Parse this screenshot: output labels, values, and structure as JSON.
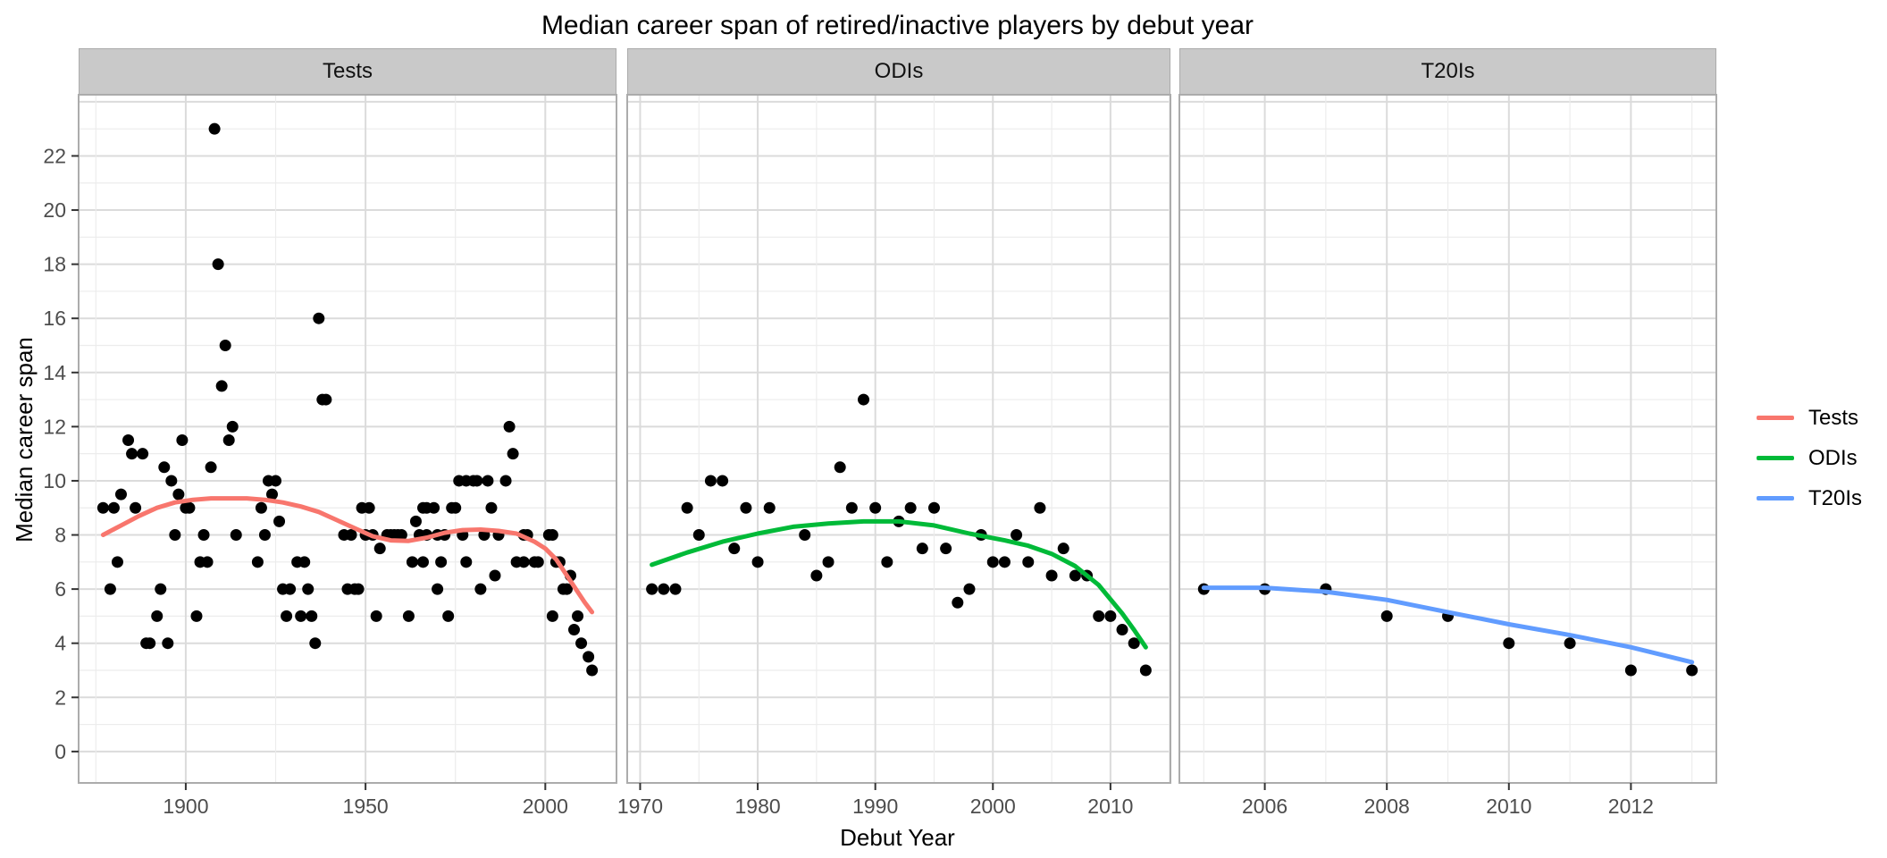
{
  "title": "Median career span of retired/inactive players by debut year",
  "axes": {
    "x_title": "Debut Year",
    "y_title": "Median career span",
    "y_tick_labels": [
      0,
      2,
      4,
      6,
      8,
      10,
      12,
      14,
      16,
      18,
      20,
      22
    ],
    "tick_label_color": "#4d4d4d"
  },
  "legend": {
    "items": [
      {
        "label": "Tests",
        "color": "#F8766D"
      },
      {
        "label": "ODIs",
        "color": "#00BA38"
      },
      {
        "label": "T20Is",
        "color": "#619CFF"
      }
    ]
  },
  "chart_data": [
    {
      "type": "scatter",
      "facet": "Tests",
      "smooth_color": "#F8766D",
      "point_color": "#000000",
      "x_domain": [
        1870.2,
        2019.8
      ],
      "y_domain": [
        -1.16,
        24.26
      ],
      "x_major_ticks": [
        1900,
        1950,
        2000
      ],
      "x_minor_ticks": [
        1875,
        1925,
        1975
      ],
      "points": [
        [
          1877,
          9
        ],
        [
          1879,
          6
        ],
        [
          1880,
          9
        ],
        [
          1881,
          7
        ],
        [
          1882,
          9.5
        ],
        [
          1884,
          11.5
        ],
        [
          1885,
          11
        ],
        [
          1886,
          9
        ],
        [
          1888,
          11
        ],
        [
          1889,
          4
        ],
        [
          1890,
          4
        ],
        [
          1892,
          5
        ],
        [
          1893,
          6
        ],
        [
          1894,
          10.5
        ],
        [
          1895,
          4
        ],
        [
          1896,
          10
        ],
        [
          1897,
          8
        ],
        [
          1898,
          9.5
        ],
        [
          1899,
          11.5
        ],
        [
          1900,
          9
        ],
        [
          1901,
          9
        ],
        [
          1903,
          5
        ],
        [
          1904,
          7
        ],
        [
          1905,
          8
        ],
        [
          1906,
          7
        ],
        [
          1907,
          10.5
        ],
        [
          1908,
          23
        ],
        [
          1909,
          18
        ],
        [
          1910,
          13.5
        ],
        [
          1911,
          15
        ],
        [
          1912,
          11.5
        ],
        [
          1913,
          12
        ],
        [
          1914,
          8
        ],
        [
          1920,
          7
        ],
        [
          1921,
          9
        ],
        [
          1922,
          8
        ],
        [
          1923,
          10
        ],
        [
          1924,
          9.5
        ],
        [
          1925,
          10
        ],
        [
          1926,
          8.5
        ],
        [
          1927,
          6
        ],
        [
          1928,
          5
        ],
        [
          1929,
          6
        ],
        [
          1931,
          7
        ],
        [
          1932,
          5
        ],
        [
          1933,
          7
        ],
        [
          1934,
          6
        ],
        [
          1935,
          5
        ],
        [
          1936,
          4
        ],
        [
          1937,
          16
        ],
        [
          1938,
          13
        ],
        [
          1939,
          13
        ],
        [
          1944,
          8
        ],
        [
          1945,
          6
        ],
        [
          1946,
          8
        ],
        [
          1947,
          6
        ],
        [
          1948,
          6
        ],
        [
          1949,
          9
        ],
        [
          1950,
          8
        ],
        [
          1951,
          9
        ],
        [
          1952,
          8
        ],
        [
          1953,
          5
        ],
        [
          1954,
          7.5
        ],
        [
          1956,
          8
        ],
        [
          1957,
          8
        ],
        [
          1958,
          8
        ],
        [
          1959,
          8
        ],
        [
          1960,
          8
        ],
        [
          1962,
          5
        ],
        [
          1963,
          7
        ],
        [
          1964,
          8.5
        ],
        [
          1965,
          8
        ],
        [
          1966,
          9
        ],
        [
          1966,
          7
        ],
        [
          1967,
          9
        ],
        [
          1967,
          8
        ],
        [
          1969,
          9
        ],
        [
          1970,
          8
        ],
        [
          1970,
          6
        ],
        [
          1971,
          7
        ],
        [
          1972,
          8
        ],
        [
          1973,
          5
        ],
        [
          1974,
          9
        ],
        [
          1975,
          9
        ],
        [
          1976,
          10
        ],
        [
          1977,
          8
        ],
        [
          1978,
          10
        ],
        [
          1978,
          7
        ],
        [
          1980,
          10
        ],
        [
          1981,
          10
        ],
        [
          1982,
          6
        ],
        [
          1983,
          8
        ],
        [
          1984,
          10
        ],
        [
          1985,
          9
        ],
        [
          1986,
          6.5
        ],
        [
          1987,
          8
        ],
        [
          1989,
          10
        ],
        [
          1990,
          12
        ],
        [
          1991,
          11
        ],
        [
          1992,
          7
        ],
        [
          1994,
          8
        ],
        [
          1994,
          7
        ],
        [
          1995,
          8
        ],
        [
          1997,
          7
        ],
        [
          1998,
          7
        ],
        [
          2001,
          8
        ],
        [
          2002,
          8
        ],
        [
          2002,
          5
        ],
        [
          2003,
          7
        ],
        [
          2004,
          7
        ],
        [
          2005,
          6
        ],
        [
          2006,
          6
        ],
        [
          2007,
          6.5
        ],
        [
          2008,
          4.5
        ],
        [
          2009,
          5
        ],
        [
          2010,
          4
        ],
        [
          2012,
          3.5
        ],
        [
          2013,
          3
        ]
      ],
      "smooth": [
        [
          1877,
          8.0
        ],
        [
          1882,
          8.35
        ],
        [
          1887,
          8.7
        ],
        [
          1892,
          9.0
        ],
        [
          1897,
          9.2
        ],
        [
          1902,
          9.3
        ],
        [
          1907,
          9.35
        ],
        [
          1912,
          9.35
        ],
        [
          1917,
          9.35
        ],
        [
          1922,
          9.3
        ],
        [
          1927,
          9.2
        ],
        [
          1932,
          9.05
        ],
        [
          1937,
          8.85
        ],
        [
          1942,
          8.55
        ],
        [
          1947,
          8.25
        ],
        [
          1952,
          7.95
        ],
        [
          1957,
          7.8
        ],
        [
          1962,
          7.78
        ],
        [
          1967,
          7.9
        ],
        [
          1972,
          8.08
        ],
        [
          1977,
          8.18
        ],
        [
          1982,
          8.2
        ],
        [
          1987,
          8.15
        ],
        [
          1992,
          8.05
        ],
        [
          1997,
          7.75
        ],
        [
          2000,
          7.5
        ],
        [
          2003,
          7.1
        ],
        [
          2006,
          6.5
        ],
        [
          2009,
          5.9
        ],
        [
          2011,
          5.5
        ],
        [
          2013,
          5.15
        ]
      ]
    },
    {
      "type": "scatter",
      "facet": "ODIs",
      "smooth_color": "#00BA38",
      "point_color": "#000000",
      "x_domain": [
        1968.9,
        2015.1
      ],
      "y_domain": [
        -1.16,
        24.26
      ],
      "x_major_ticks": [
        1970,
        1980,
        1990,
        2000,
        2010
      ],
      "x_minor_ticks": [
        1975,
        1985,
        1995,
        2005,
        2015
      ],
      "points": [
        [
          1971,
          6
        ],
        [
          1972,
          6
        ],
        [
          1973,
          6
        ],
        [
          1974,
          9
        ],
        [
          1975,
          8
        ],
        [
          1976,
          10
        ],
        [
          1977,
          10
        ],
        [
          1978,
          7.5
        ],
        [
          1979,
          9
        ],
        [
          1980,
          7
        ],
        [
          1981,
          9
        ],
        [
          1984,
          8
        ],
        [
          1985,
          6.5
        ],
        [
          1986,
          7
        ],
        [
          1987,
          10.5
        ],
        [
          1988,
          9
        ],
        [
          1989,
          13
        ],
        [
          1990,
          9
        ],
        [
          1991,
          7
        ],
        [
          1992,
          8.5
        ],
        [
          1993,
          9
        ],
        [
          1994,
          7.5
        ],
        [
          1995,
          9
        ],
        [
          1996,
          7.5
        ],
        [
          1997,
          5.5
        ],
        [
          1998,
          6
        ],
        [
          1999,
          8
        ],
        [
          2000,
          7
        ],
        [
          2001,
          7
        ],
        [
          2002,
          8
        ],
        [
          2003,
          7
        ],
        [
          2004,
          9
        ],
        [
          2005,
          6.5
        ],
        [
          2006,
          7.5
        ],
        [
          2007,
          6.5
        ],
        [
          2008,
          6.5
        ],
        [
          2009,
          5
        ],
        [
          2010,
          5
        ],
        [
          2011,
          4.5
        ],
        [
          2012,
          4
        ],
        [
          2013,
          3
        ]
      ],
      "smooth": [
        [
          1971,
          6.9
        ],
        [
          1974,
          7.35
        ],
        [
          1977,
          7.75
        ],
        [
          1980,
          8.05
        ],
        [
          1983,
          8.3
        ],
        [
          1986,
          8.42
        ],
        [
          1989,
          8.5
        ],
        [
          1992,
          8.5
        ],
        [
          1995,
          8.35
        ],
        [
          1998,
          8.05
        ],
        [
          2001,
          7.8
        ],
        [
          2003,
          7.6
        ],
        [
          2005,
          7.3
        ],
        [
          2007,
          6.85
        ],
        [
          2009,
          6.15
        ],
        [
          2011,
          5.1
        ],
        [
          2012,
          4.5
        ],
        [
          2013,
          3.85
        ]
      ]
    },
    {
      "type": "scatter",
      "facet": "T20Is",
      "smooth_color": "#619CFF",
      "point_color": "#000000",
      "x_domain": [
        2004.6,
        2013.4
      ],
      "y_domain": [
        -1.16,
        24.26
      ],
      "x_major_ticks": [
        2006,
        2008,
        2010,
        2012
      ],
      "x_minor_ticks": [
        2005,
        2007,
        2009,
        2011,
        2013
      ],
      "points": [
        [
          2005,
          6
        ],
        [
          2006,
          6
        ],
        [
          2007,
          6
        ],
        [
          2008,
          5
        ],
        [
          2009,
          5
        ],
        [
          2010,
          4
        ],
        [
          2011,
          4
        ],
        [
          2012,
          3
        ],
        [
          2013,
          3
        ]
      ],
      "smooth": [
        [
          2005,
          6.05
        ],
        [
          2006,
          6.05
        ],
        [
          2007,
          5.9
        ],
        [
          2008,
          5.6
        ],
        [
          2009,
          5.15
        ],
        [
          2010,
          4.7
        ],
        [
          2011,
          4.3
        ],
        [
          2012,
          3.85
        ],
        [
          2013,
          3.3
        ]
      ]
    }
  ],
  "style": {
    "grid_major_color": "#dbdbdb",
    "grid_minor_color": "#ececec",
    "panel_border_color": "#acacac",
    "strip_fill": "#c9c9c9",
    "point_radius": 6.5,
    "smooth_width": 5
  }
}
